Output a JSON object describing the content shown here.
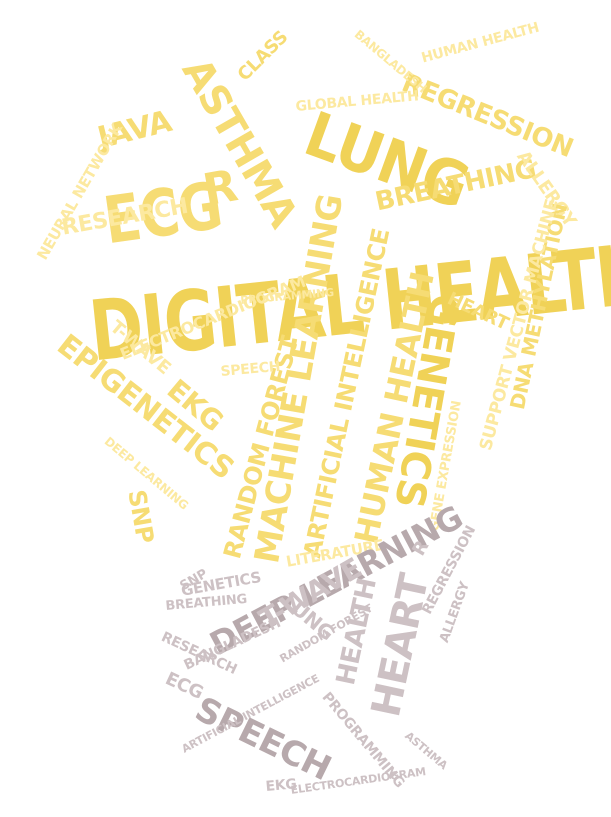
{
  "bulb_words": {
    "digital_health": "DIGITAL HEALTH",
    "lung": "LUNG",
    "asthma": "ASTHMA",
    "ecg": "ECG",
    "r": "R",
    "java": "JAVA",
    "class": "CLASS",
    "regression": "REGRESSION",
    "breathing": "BREATHING",
    "allergy": "ALLERGY",
    "genetics": "GENETICS",
    "epigenetics": "EPIGENETICS",
    "ekg": "EKG",
    "machine_learning": "MACHINE LEARNING",
    "artificial_intelligence": "ARTIFICIAL INTELLIGENCE",
    "human_health": "HUMAN HEALTH",
    "random_forest": "RANDOM FOREST",
    "research": "RESEARCH",
    "electrocardiogram": "ELECTROCARDIOGRAM",
    "t_wave": "T-WAVE",
    "dna_methylation": "DNA METHYLATION",
    "support_vector_machine": "SUPPORT VECTOR MACHINE",
    "heart": "HEART",
    "snp": "SNP",
    "literature": "LITERATURE",
    "speech": "SPEECH",
    "global_health": "GLOBAL HEALTH",
    "neural_network": "NEURAL NETWORK",
    "bangladesh": "BANGLADESH",
    "gene_expression": "GENE EXPRESSION",
    "deep_learning": "DEEP LEARNING",
    "human_health_small": "HUMAN HEALTH",
    "programming": "PROGRAMMING"
  },
  "base_words": {
    "deep_learning": "DEEP LEARNING",
    "speech": "SPEECH",
    "heart": "HEART",
    "health": "HEALTH",
    "t_wave": "T-WAVE",
    "lung": "LUNG",
    "genetics": "GENETICS",
    "breathing": "BREATHING",
    "research": "RESEARCH",
    "bangladesh": "BANGLADESH",
    "ecg": "ECG",
    "programming": "PROGRAMMING",
    "regression": "REGRESSION",
    "allergy": "ALLERGY",
    "artificial_intelligence": "ARTIFICIAL INTELLIGENCE",
    "electrocardiogram": "ELECTROCARDIOGRAM",
    "ekg": "EKG",
    "snp": "SNP",
    "random_forest": "RANDOM FOREST",
    "asthma": "ASTHMA",
    "r": "R"
  },
  "colors": {
    "bulb_light": "#fce9a0",
    "bulb_mid": "#f6dc74",
    "bulb_strong": "#f0d257",
    "base_light": "#cdc1c4",
    "base_dark": "#b7a9ac"
  }
}
